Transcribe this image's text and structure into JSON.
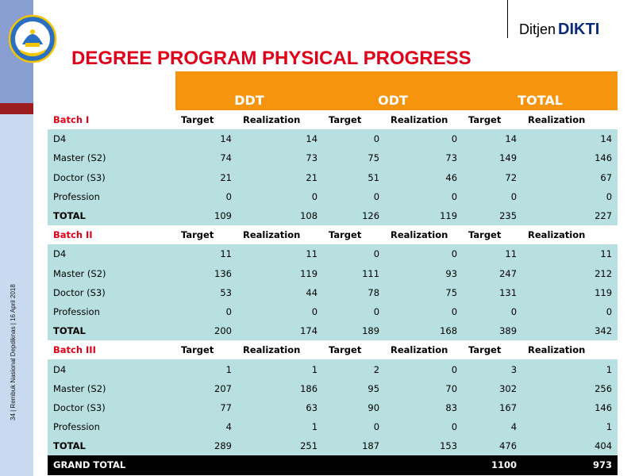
{
  "header": {
    "brand_prefix": "Ditjen",
    "brand_name": "DIKTI",
    "title": "DEGREE PROGRAM PHYSICAL PROGRESS",
    "side_text": "34 | Rembuk Nasional Depdiknas | 16 April 2018"
  },
  "table": {
    "groups": [
      "DDT",
      "ODT",
      "TOTAL"
    ],
    "col_target": "Target",
    "col_realization": "Realization",
    "batches": [
      {
        "name": "Batch I",
        "rows": [
          {
            "label": "D4",
            "values": [
              "14",
              "14",
              "0",
              "0",
              "14",
              "14"
            ]
          },
          {
            "label": "Master (S2)",
            "values": [
              "74",
              "73",
              "75",
              "73",
              "149",
              "146"
            ]
          },
          {
            "label": "Doctor (S3)",
            "values": [
              "21",
              "21",
              "51",
              "46",
              "72",
              "67"
            ]
          },
          {
            "label": "Profession",
            "values": [
              "0",
              "0",
              "0",
              "0",
              "0",
              "0"
            ]
          },
          {
            "label": "TOTAL",
            "values": [
              "109",
              "108",
              "126",
              "119",
              "235",
              "227"
            ]
          }
        ]
      },
      {
        "name": "Batch II",
        "rows": [
          {
            "label": "D4",
            "values": [
              "11",
              "11",
              "0",
              "0",
              "11",
              "11"
            ]
          },
          {
            "label": "Master (S2)",
            "values": [
              "136",
              "119",
              "111",
              "93",
              "247",
              "212"
            ]
          },
          {
            "label": "Doctor (S3)",
            "values": [
              "53",
              "44",
              "78",
              "75",
              "131",
              "119"
            ]
          },
          {
            "label": "Profession",
            "values": [
              "0",
              "0",
              "0",
              "0",
              "0",
              "0"
            ]
          },
          {
            "label": "TOTAL",
            "values": [
              "200",
              "174",
              "189",
              "168",
              "389",
              "342"
            ]
          }
        ]
      },
      {
        "name": "Batch III",
        "rows": [
          {
            "label": "D4",
            "values": [
              "1",
              "1",
              "2",
              "0",
              "3",
              "1"
            ]
          },
          {
            "label": "Master (S2)",
            "values": [
              "207",
              "186",
              "95",
              "70",
              "302",
              "256"
            ]
          },
          {
            "label": "Doctor (S3)",
            "values": [
              "77",
              "63",
              "90",
              "83",
              "167",
              "146"
            ]
          },
          {
            "label": "Profession",
            "values": [
              "4",
              "1",
              "0",
              "0",
              "4",
              "1"
            ]
          },
          {
            "label": "TOTAL",
            "values": [
              "289",
              "251",
              "187",
              "153",
              "476",
              "404"
            ]
          }
        ]
      }
    ],
    "grand_total": {
      "label": "GRAND TOTAL",
      "target": "1100",
      "realization": "973"
    }
  }
}
